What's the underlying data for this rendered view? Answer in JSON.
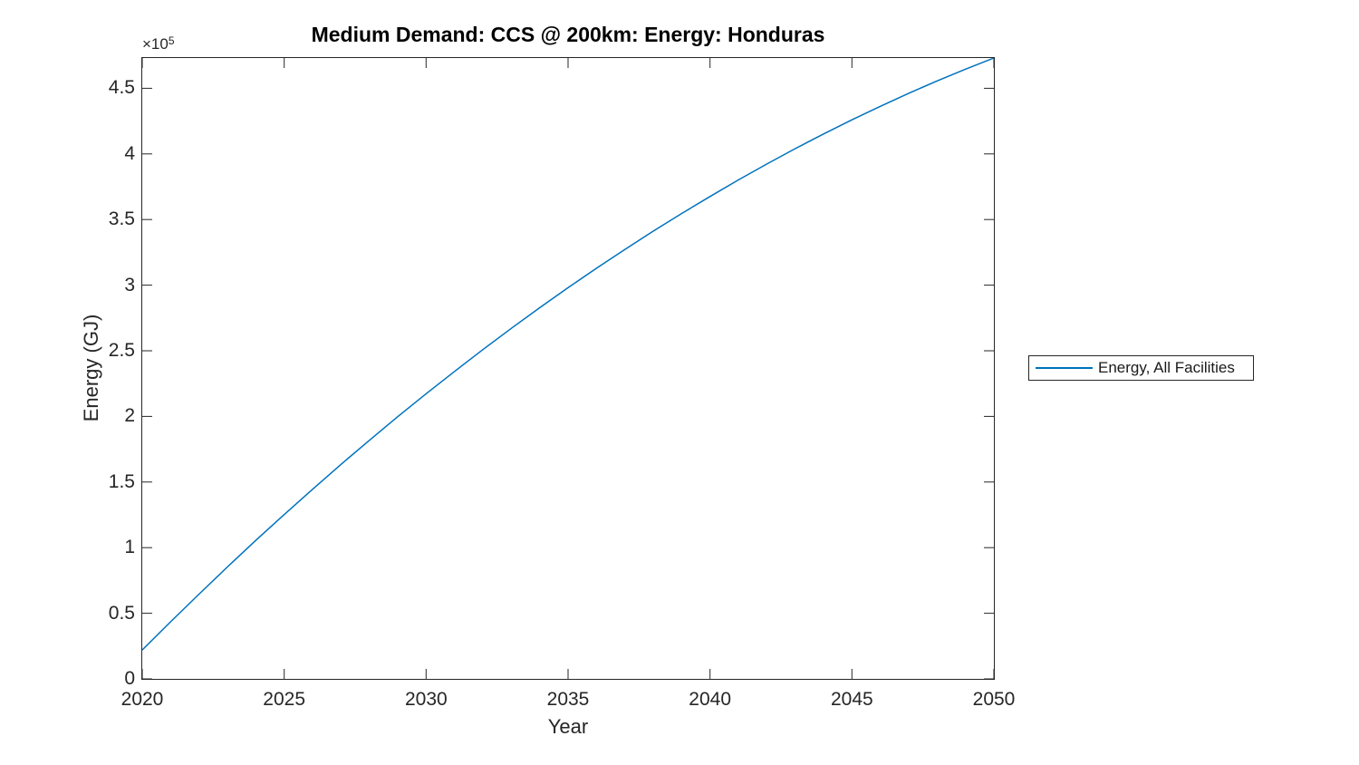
{
  "figure": {
    "title": "Medium Demand: CCS @ 200km: Energy: Honduras",
    "axis": {
      "xlabel": "Year",
      "ylabel": "Energy (GJ)",
      "y_exponent_base": "×10",
      "y_exponent_power": "5"
    },
    "legend": {
      "items": [
        {
          "label": "Energy, All Facilities",
          "color": "#0072BD"
        }
      ]
    }
  },
  "chart_data": {
    "type": "line",
    "title": "Medium Demand: CCS @ 200km: Energy: Honduras",
    "xlabel": "Year",
    "ylabel": "Energy (GJ)",
    "y_axis_multiplier_label": "×10^5",
    "xlim": [
      2020,
      2050
    ],
    "ylim": [
      0,
      473100
    ],
    "x_ticks": [
      2020,
      2025,
      2030,
      2035,
      2040,
      2045,
      2050
    ],
    "y_ticks": [
      0,
      50000,
      100000,
      150000,
      200000,
      250000,
      300000,
      350000,
      400000,
      450000
    ],
    "y_tick_labels": [
      "0",
      "0.5",
      "1",
      "1.5",
      "2",
      "2.5",
      "3",
      "3.5",
      "4",
      "4.5"
    ],
    "grid": false,
    "legend_position": "right-outside",
    "series": [
      {
        "name": "Energy, All Facilities",
        "color": "#0072BD",
        "x": [
          2020,
          2021,
          2022,
          2023,
          2024,
          2025,
          2026,
          2027,
          2028,
          2029,
          2030,
          2031,
          2032,
          2033,
          2034,
          2035,
          2036,
          2037,
          2038,
          2039,
          2040,
          2041,
          2042,
          2043,
          2044,
          2045,
          2046,
          2047,
          2048,
          2049,
          2050
        ],
        "y": [
          22000,
          43500,
          64600,
          85300,
          105500,
          125200,
          144500,
          163400,
          181800,
          199800,
          217300,
          234300,
          250900,
          267100,
          282800,
          298100,
          312900,
          327200,
          341200,
          354600,
          367600,
          380200,
          392300,
          404000,
          415200,
          426000,
          436300,
          446200,
          455600,
          464600,
          473100
        ]
      }
    ]
  },
  "colors": {
    "background": "#ffffff",
    "axis": "#262626",
    "title": "#000000",
    "line": "#0072BD"
  }
}
